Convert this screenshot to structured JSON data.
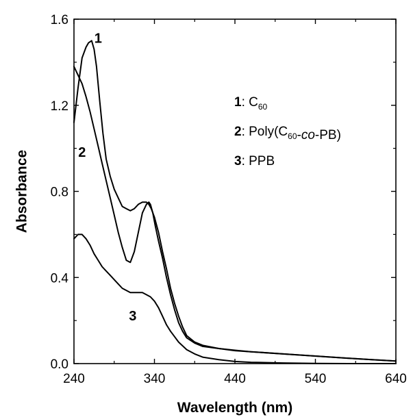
{
  "chart_data": {
    "type": "line",
    "xlabel": "Wavelength (nm)",
    "ylabel": "Absorbance",
    "xlim": [
      240,
      640
    ],
    "ylim": [
      0.0,
      1.6
    ],
    "x_ticks": [
      "240",
      "340",
      "440",
      "540",
      "640"
    ],
    "y_ticks": [
      "0.0",
      "0.4",
      "0.8",
      "1.2",
      "1.6"
    ],
    "grid": false,
    "legend": [
      {
        "num": "1",
        "pre": ": C",
        "sub": "60",
        "post": "",
        "italic": "",
        "post2": ""
      },
      {
        "num": "2",
        "pre": ": Poly(C",
        "sub": "60",
        "post": "-",
        "italic": "co",
        "post2": "-PB)"
      },
      {
        "num": "3",
        "pre": ": PPB",
        "sub": "",
        "post": "",
        "italic": "",
        "post2": ""
      }
    ],
    "series": [
      {
        "name": "1",
        "x": [
          240,
          245,
          250,
          255,
          258,
          262,
          265,
          268,
          272,
          276,
          280,
          285,
          290,
          295,
          300,
          305,
          310,
          315,
          320,
          325,
          330,
          333,
          336,
          340,
          345,
          350,
          355,
          360,
          365,
          370,
          375,
          380,
          390,
          400,
          420,
          440,
          460,
          500,
          540,
          580,
          610,
          640
        ],
        "y": [
          1.12,
          1.28,
          1.42,
          1.47,
          1.49,
          1.5,
          1.46,
          1.38,
          1.22,
          1.07,
          0.95,
          0.87,
          0.81,
          0.77,
          0.73,
          0.72,
          0.71,
          0.72,
          0.74,
          0.75,
          0.75,
          0.74,
          0.72,
          0.68,
          0.61,
          0.52,
          0.44,
          0.35,
          0.28,
          0.22,
          0.17,
          0.13,
          0.1,
          0.085,
          0.07,
          0.062,
          0.055,
          0.045,
          0.035,
          0.025,
          0.018,
          0.012
        ]
      },
      {
        "name": "2",
        "x": [
          240,
          245,
          250,
          255,
          260,
          265,
          270,
          275,
          280,
          285,
          290,
          295,
          300,
          305,
          310,
          315,
          320,
          325,
          330,
          333,
          335,
          338,
          341,
          345,
          350,
          355,
          360,
          365,
          370,
          375,
          380,
          390,
          400,
          420,
          440,
          460,
          500,
          540,
          580,
          610,
          640
        ],
        "y": [
          1.38,
          1.34,
          1.3,
          1.24,
          1.17,
          1.09,
          1.01,
          0.93,
          0.85,
          0.77,
          0.69,
          0.61,
          0.54,
          0.48,
          0.47,
          0.52,
          0.61,
          0.7,
          0.74,
          0.75,
          0.74,
          0.7,
          0.64,
          0.57,
          0.49,
          0.4,
          0.32,
          0.25,
          0.19,
          0.15,
          0.12,
          0.095,
          0.08,
          0.07,
          0.06,
          0.055,
          0.045,
          0.035,
          0.025,
          0.018,
          0.012
        ]
      },
      {
        "name": "3",
        "x": [
          240,
          245,
          250,
          255,
          260,
          265,
          270,
          275,
          280,
          285,
          290,
          295,
          300,
          305,
          310,
          315,
          320,
          325,
          330,
          335,
          340,
          345,
          350,
          355,
          360,
          370,
          380,
          390,
          400,
          420,
          440,
          460,
          500,
          540,
          580,
          640
        ],
        "y": [
          0.58,
          0.6,
          0.6,
          0.58,
          0.55,
          0.51,
          0.48,
          0.45,
          0.43,
          0.41,
          0.39,
          0.37,
          0.35,
          0.34,
          0.33,
          0.33,
          0.33,
          0.33,
          0.32,
          0.31,
          0.29,
          0.26,
          0.22,
          0.18,
          0.15,
          0.1,
          0.065,
          0.045,
          0.03,
          0.018,
          0.01,
          0.006,
          0.003,
          0.001,
          0.0,
          0.0
        ]
      }
    ],
    "curve_labels": [
      {
        "text": "1",
        "x": 270,
        "y": 1.49
      },
      {
        "text": "2",
        "x": 250,
        "y": 0.96
      },
      {
        "text": "3",
        "x": 313,
        "y": 0.2
      }
    ]
  }
}
